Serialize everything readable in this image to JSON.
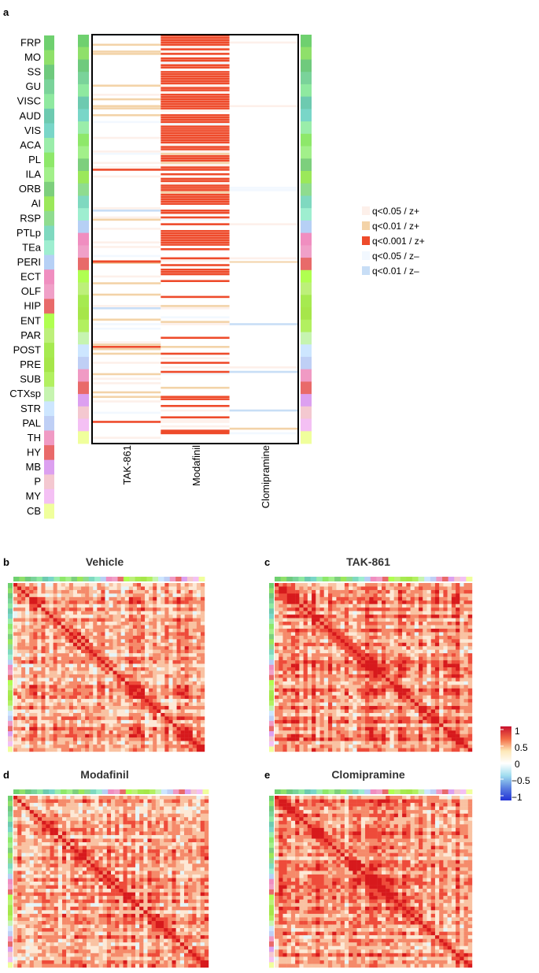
{
  "panels": {
    "a": "a",
    "b": "b",
    "c": "c",
    "d": "d",
    "e": "e"
  },
  "chart_data": [
    {
      "type": "heatmap",
      "id": "a",
      "title": "",
      "columns": [
        "TAK-861",
        "Modafinil",
        "Clomipramine"
      ],
      "regions": [
        "FRP",
        "MO",
        "SS",
        "GU",
        "VISC",
        "AUD",
        "VIS",
        "ACA",
        "PL",
        "ILA",
        "ORB",
        "AI",
        "RSP",
        "PTLp",
        "TEa",
        "PERI",
        "ECT",
        "OLF",
        "HIP",
        "ENT",
        "PAR",
        "POST",
        "PRE",
        "SUB",
        "CTXsp",
        "STR",
        "PAL",
        "TH",
        "HY",
        "MB",
        "P",
        "MY",
        "CB"
      ],
      "region_colors": [
        "#6fd06f",
        "#8fe06a",
        "#6fca7d",
        "#7ad39a",
        "#8fe9a0",
        "#6dcab0",
        "#79d6c8",
        "#9aedaa",
        "#8ee86a",
        "#a2f08a",
        "#7dcf7d",
        "#9be85a",
        "#8fdc8f",
        "#7fd9c0",
        "#9eeed0",
        "#b6d0f5",
        "#f08ec0",
        "#f0a0c8",
        "#e86a6a",
        "#b0ff50",
        "#bdf07a",
        "#a6ea50",
        "#a6e64a",
        "#b2f060",
        "#c6f4b0",
        "#cde6ff",
        "#bfcff5",
        "#f09ac4",
        "#e96a6a",
        "#dca0f0",
        "#f4c8d0",
        "#f4c0f4",
        "#f0ff9c"
      ],
      "legend": [
        {
          "label": "q<0.05 / z+",
          "color": "#fdf0ea"
        },
        {
          "label": "q<0.01 / z+",
          "color": "#f3d3a8"
        },
        {
          "label": "q<0.001 / z+",
          "color": "#ee4b2b"
        },
        {
          "label": "q<0.05 / z–",
          "color": "#f2f8ff"
        },
        {
          "label": "q<0.01 / z–",
          "color": "#c8def6"
        }
      ]
    },
    {
      "type": "heatmap",
      "id": "b",
      "title": "Vehicle",
      "density": 0.55,
      "seed": 11
    },
    {
      "type": "heatmap",
      "id": "c",
      "title": "TAK-861",
      "density": 0.72,
      "seed": 23
    },
    {
      "type": "heatmap",
      "id": "d",
      "title": "Modafinil",
      "density": 0.58,
      "seed": 37
    },
    {
      "type": "heatmap",
      "id": "e",
      "title": "Clomipramine",
      "density": 0.62,
      "seed": 51
    },
    {
      "type": "colorbar",
      "id": "scale",
      "range": [
        -1,
        1
      ],
      "ticks": [
        "1",
        "0.5",
        "0",
        "−0.5",
        "−1"
      ],
      "colors": [
        "#c8102e",
        "#f26a44",
        "#fde8b8",
        "#ffffff",
        "#9fdcef",
        "#5a7fe0",
        "#2233d6"
      ]
    }
  ]
}
